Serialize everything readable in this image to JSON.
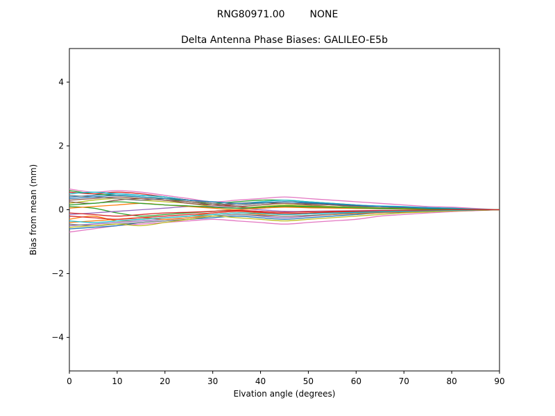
{
  "figure": {
    "background": "#ffffff",
    "suptitle": {
      "left": "RNG80971.00",
      "right": "NONE"
    }
  },
  "chart_data": {
    "type": "line",
    "title": "Delta Antenna Phase Biases: GALILEO-E5b",
    "xlabel": "Elvation angle (degrees)",
    "ylabel": "Bias from mean (mm)",
    "xlim": [
      0,
      90
    ],
    "ylim": [
      -5.05,
      5.05
    ],
    "x_ticks": [
      0,
      10,
      20,
      30,
      40,
      50,
      60,
      70,
      80,
      90
    ],
    "y_ticks": [
      -4,
      -2,
      0,
      2,
      4
    ],
    "grid": false,
    "legend": "none",
    "x": [
      0,
      5,
      10,
      15,
      20,
      25,
      30,
      35,
      40,
      45,
      50,
      55,
      60,
      65,
      70,
      75,
      80,
      85,
      90
    ],
    "series": [
      {
        "name": "series-01",
        "color": "#1f77b4",
        "values": [
          0.4,
          0.45,
          0.5,
          0.45,
          0.4,
          0.3,
          0.2,
          0.15,
          0.2,
          0.25,
          0.2,
          0.15,
          0.1,
          0.1,
          0.05,
          0.05,
          0.05,
          0.02,
          0
        ]
      },
      {
        "name": "series-02",
        "color": "#ff7f0e",
        "values": [
          -0.3,
          -0.2,
          -0.35,
          -0.3,
          -0.25,
          -0.2,
          -0.1,
          -0.05,
          -0.1,
          -0.15,
          -0.1,
          -0.08,
          -0.05,
          -0.05,
          -0.03,
          -0.02,
          -0.02,
          -0.01,
          0
        ]
      },
      {
        "name": "series-03",
        "color": "#2ca02c",
        "values": [
          0.6,
          0.5,
          0.45,
          0.4,
          0.35,
          0.25,
          0.2,
          0.25,
          0.3,
          0.3,
          0.25,
          0.2,
          0.15,
          0.1,
          0.08,
          0.06,
          0.04,
          0.02,
          0
        ]
      },
      {
        "name": "series-04",
        "color": "#d62728",
        "values": [
          0.55,
          0.5,
          0.55,
          0.5,
          0.4,
          0.3,
          0.2,
          0.1,
          0.05,
          0.1,
          0.1,
          0.08,
          0.05,
          0.04,
          0.03,
          0.02,
          0.01,
          0.01,
          0
        ]
      },
      {
        "name": "series-05",
        "color": "#9467bd",
        "values": [
          -0.5,
          -0.45,
          -0.4,
          -0.35,
          -0.3,
          -0.25,
          -0.2,
          -0.15,
          -0.2,
          -0.25,
          -0.2,
          -0.15,
          -0.1,
          -0.08,
          -0.06,
          -0.04,
          -0.03,
          -0.01,
          0
        ]
      },
      {
        "name": "series-06",
        "color": "#8c564b",
        "values": [
          0.3,
          0.35,
          0.4,
          0.35,
          0.3,
          0.25,
          0.15,
          0.1,
          0.15,
          0.2,
          0.15,
          0.1,
          0.08,
          0.06,
          0.05,
          0.03,
          0.02,
          0.01,
          0
        ]
      },
      {
        "name": "series-07",
        "color": "#e377c2",
        "values": [
          0.65,
          0.55,
          0.6,
          0.55,
          0.45,
          0.35,
          0.25,
          0.3,
          0.35,
          0.4,
          0.35,
          0.3,
          0.25,
          0.2,
          0.15,
          0.1,
          0.08,
          0.04,
          0
        ]
      },
      {
        "name": "series-08",
        "color": "#e377c2",
        "values": [
          -0.7,
          -0.6,
          -0.5,
          -0.45,
          -0.4,
          -0.35,
          -0.3,
          -0.35,
          -0.4,
          -0.45,
          -0.4,
          -0.35,
          -0.3,
          -0.2,
          -0.15,
          -0.1,
          -0.06,
          -0.03,
          0
        ]
      },
      {
        "name": "series-09",
        "color": "#bcbd22",
        "values": [
          0.2,
          0.3,
          0.35,
          0.3,
          0.25,
          0.2,
          0.1,
          0.05,
          0.1,
          0.15,
          0.12,
          0.1,
          0.08,
          0.05,
          0.04,
          0.03,
          0.02,
          0.01,
          0
        ]
      },
      {
        "name": "series-10",
        "color": "#17becf",
        "values": [
          0.5,
          0.55,
          0.5,
          0.45,
          0.4,
          0.3,
          0.25,
          0.2,
          0.25,
          0.3,
          0.25,
          0.2,
          0.15,
          0.12,
          0.1,
          0.07,
          0.05,
          0.02,
          0
        ]
      },
      {
        "name": "series-11",
        "color": "#1f77b4",
        "values": [
          -0.6,
          -0.55,
          -0.5,
          -0.4,
          -0.35,
          -0.3,
          -0.25,
          -0.2,
          -0.25,
          -0.3,
          -0.25,
          -0.2,
          -0.15,
          -0.1,
          -0.08,
          -0.05,
          -0.03,
          -0.02,
          0
        ]
      },
      {
        "name": "series-12",
        "color": "#ff7f0e",
        "values": [
          -0.4,
          -0.35,
          -0.3,
          -0.25,
          -0.3,
          -0.25,
          -0.15,
          -0.1,
          -0.15,
          -0.2,
          -0.18,
          -0.15,
          -0.12,
          -0.1,
          -0.07,
          -0.05,
          -0.03,
          -0.02,
          0
        ]
      },
      {
        "name": "series-13",
        "color": "#2ca02c",
        "values": [
          0.1,
          0.05,
          -0.1,
          -0.2,
          -0.15,
          -0.1,
          -0.05,
          0,
          0.05,
          0.1,
          0.08,
          0.06,
          0.05,
          0.04,
          0.03,
          0.02,
          0.01,
          0,
          0
        ]
      },
      {
        "name": "series-14",
        "color": "#d62728",
        "values": [
          -0.2,
          -0.25,
          -0.3,
          -0.25,
          -0.2,
          -0.15,
          -0.1,
          -0.05,
          -0.08,
          -0.12,
          -0.1,
          -0.08,
          -0.06,
          -0.04,
          -0.03,
          -0.02,
          -0.01,
          0,
          0
        ]
      },
      {
        "name": "series-15",
        "color": "#9467bd",
        "values": [
          -0.15,
          -0.1,
          -0.05,
          0,
          0.05,
          0.1,
          0.1,
          0.05,
          0,
          -0.05,
          -0.05,
          -0.04,
          -0.03,
          -0.02,
          -0.02,
          -0.01,
          -0.01,
          0,
          0
        ]
      },
      {
        "name": "series-16",
        "color": "#8c564b",
        "values": [
          0.25,
          0.2,
          0.3,
          0.35,
          0.3,
          0.2,
          0.15,
          0.2,
          0.22,
          0.2,
          0.18,
          0.15,
          0.12,
          0.1,
          0.07,
          0.05,
          0.03,
          0.01,
          0
        ]
      },
      {
        "name": "series-17",
        "color": "#7f7f7f",
        "values": [
          -0.45,
          -0.5,
          -0.45,
          -0.4,
          -0.35,
          -0.3,
          -0.2,
          -0.15,
          -0.18,
          -0.2,
          -0.18,
          -0.14,
          -0.1,
          -0.08,
          -0.06,
          -0.04,
          -0.02,
          -0.01,
          0
        ]
      },
      {
        "name": "series-18",
        "color": "#7f7f7f",
        "values": [
          0.45,
          0.4,
          0.35,
          0.3,
          0.35,
          0.3,
          0.2,
          0.15,
          0.2,
          0.25,
          0.22,
          0.18,
          0.14,
          0.1,
          0.08,
          0.05,
          0.03,
          0.02,
          0
        ]
      },
      {
        "name": "series-19",
        "color": "#bcbd22",
        "values": [
          -0.55,
          -0.5,
          -0.45,
          -0.5,
          -0.4,
          -0.3,
          -0.2,
          -0.25,
          -0.3,
          -0.35,
          -0.3,
          -0.25,
          -0.2,
          -0.15,
          -0.1,
          -0.07,
          -0.04,
          -0.02,
          0
        ]
      },
      {
        "name": "series-20",
        "color": "#17becf",
        "values": [
          -0.35,
          -0.4,
          -0.35,
          -0.3,
          -0.25,
          -0.2,
          -0.15,
          -0.1,
          -0.12,
          -0.15,
          -0.13,
          -0.1,
          -0.08,
          -0.06,
          -0.04,
          -0.03,
          -0.02,
          -0.01,
          0
        ]
      },
      {
        "name": "series-21",
        "color": "#1f77b4",
        "values": [
          0.35,
          0.4,
          0.45,
          0.4,
          0.35,
          0.3,
          0.25,
          0.2,
          0.22,
          0.25,
          0.22,
          0.18,
          0.14,
          0.1,
          0.08,
          0.05,
          0.03,
          0.01,
          0
        ]
      },
      {
        "name": "series-22",
        "color": "#ff7f0e",
        "values": [
          0.05,
          0.1,
          0.15,
          0.2,
          0.15,
          0.1,
          0.05,
          0,
          0.05,
          0.08,
          0.06,
          0.05,
          0.04,
          0.03,
          0.02,
          0.01,
          0.01,
          0,
          0
        ]
      },
      {
        "name": "series-23",
        "color": "#2ca02c",
        "values": [
          0.15,
          0.2,
          0.25,
          0.2,
          0.15,
          0.12,
          0.08,
          0.05,
          0.08,
          0.12,
          0.1,
          0.08,
          0.06,
          0.04,
          0.03,
          0.02,
          0.01,
          0,
          0
        ]
      },
      {
        "name": "series-24",
        "color": "#d62728",
        "values": [
          -0.1,
          -0.15,
          -0.2,
          -0.15,
          -0.1,
          -0.08,
          -0.05,
          -0.02,
          -0.05,
          -0.08,
          -0.06,
          -0.05,
          -0.04,
          -0.03,
          -0.02,
          -0.01,
          0,
          0,
          0
        ]
      }
    ]
  }
}
